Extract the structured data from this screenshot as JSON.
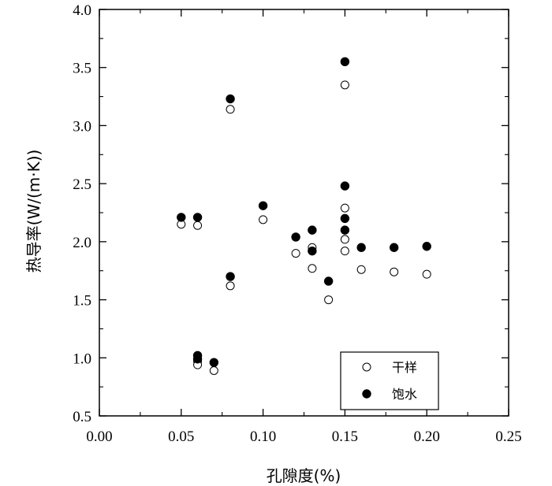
{
  "chart_data": {
    "type": "scatter",
    "xlabel": "孔隙度(%)",
    "ylabel": "热导率(W/(m·K))",
    "xlim": [
      0.0,
      0.25
    ],
    "ylim": [
      0.5,
      4.0
    ],
    "x_ticks": [
      "0.00",
      "0.05",
      "0.10",
      "0.15",
      "0.20",
      "0.25"
    ],
    "y_ticks": [
      "0.5",
      "1.0",
      "1.5",
      "2.0",
      "2.5",
      "3.0",
      "3.5",
      "4.0"
    ],
    "grid": false,
    "legend_position": "bottom-right",
    "series": [
      {
        "name": "干样",
        "marker": "open-circle",
        "color": "#000000",
        "points": [
          {
            "x": 0.05,
            "y": 2.15
          },
          {
            "x": 0.06,
            "y": 2.14
          },
          {
            "x": 0.06,
            "y": 0.97
          },
          {
            "x": 0.06,
            "y": 0.94
          },
          {
            "x": 0.07,
            "y": 0.89
          },
          {
            "x": 0.08,
            "y": 3.14
          },
          {
            "x": 0.08,
            "y": 1.62
          },
          {
            "x": 0.1,
            "y": 2.19
          },
          {
            "x": 0.12,
            "y": 1.9
          },
          {
            "x": 0.13,
            "y": 1.95
          },
          {
            "x": 0.13,
            "y": 1.77
          },
          {
            "x": 0.14,
            "y": 1.5
          },
          {
            "x": 0.15,
            "y": 3.35
          },
          {
            "x": 0.15,
            "y": 2.29
          },
          {
            "x": 0.15,
            "y": 2.02
          },
          {
            "x": 0.15,
            "y": 1.92
          },
          {
            "x": 0.16,
            "y": 1.76
          },
          {
            "x": 0.18,
            "y": 1.74
          },
          {
            "x": 0.2,
            "y": 1.72
          }
        ]
      },
      {
        "name": "饱水",
        "marker": "filled-circle",
        "color": "#000000",
        "points": [
          {
            "x": 0.05,
            "y": 2.21
          },
          {
            "x": 0.06,
            "y": 2.21
          },
          {
            "x": 0.06,
            "y": 1.02
          },
          {
            "x": 0.06,
            "y": 0.99
          },
          {
            "x": 0.07,
            "y": 0.96
          },
          {
            "x": 0.08,
            "y": 3.23
          },
          {
            "x": 0.08,
            "y": 1.7
          },
          {
            "x": 0.1,
            "y": 2.31
          },
          {
            "x": 0.12,
            "y": 2.04
          },
          {
            "x": 0.13,
            "y": 2.1
          },
          {
            "x": 0.13,
            "y": 1.92
          },
          {
            "x": 0.14,
            "y": 1.66
          },
          {
            "x": 0.15,
            "y": 3.55
          },
          {
            "x": 0.15,
            "y": 2.48
          },
          {
            "x": 0.15,
            "y": 2.2
          },
          {
            "x": 0.15,
            "y": 2.1
          },
          {
            "x": 0.16,
            "y": 1.95
          },
          {
            "x": 0.18,
            "y": 1.95
          },
          {
            "x": 0.2,
            "y": 1.96
          }
        ]
      }
    ]
  }
}
